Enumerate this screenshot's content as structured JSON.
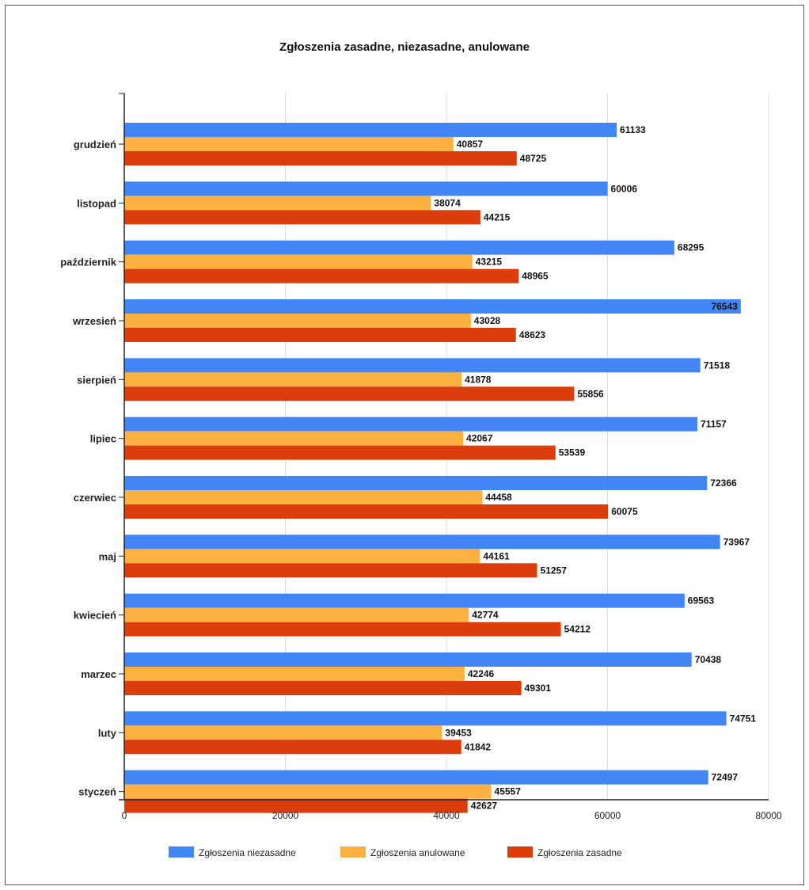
{
  "chart_data": {
    "type": "bar",
    "orientation": "horizontal",
    "title": "Zgłoszenia zasadne, niezasadne, anulowane",
    "xlabel": "",
    "ylabel": "",
    "xlim": [
      0,
      80000
    ],
    "x_ticks": [
      "0",
      "20000",
      "40000",
      "60000",
      "80000"
    ],
    "grid": true,
    "legend_position": "bottom",
    "categories": [
      "grudzień",
      "listopad",
      "październik",
      "wrzesień",
      "sierpień",
      "lipiec",
      "czerwiec",
      "maj",
      "kwiecień",
      "marzec",
      "luty",
      "styczeń"
    ],
    "series": [
      {
        "name": "Zgłoszenia niezasadne",
        "color": "#4285f4",
        "values": [
          61133,
          60006,
          68295,
          76543,
          71518,
          71157,
          72366,
          73967,
          69563,
          70438,
          74751,
          72497
        ]
      },
      {
        "name": "Zgłoszenia anulowane",
        "color": "#fbb040",
        "values": [
          40857,
          38074,
          43215,
          43028,
          41878,
          42067,
          44458,
          44161,
          42774,
          42246,
          39453,
          45557
        ]
      },
      {
        "name": "Zgłoszenia zasadne",
        "color": "#dc3d0c",
        "values": [
          48725,
          44215,
          48965,
          48623,
          55856,
          53539,
          60075,
          51257,
          54212,
          49301,
          41842,
          42627
        ]
      }
    ]
  }
}
